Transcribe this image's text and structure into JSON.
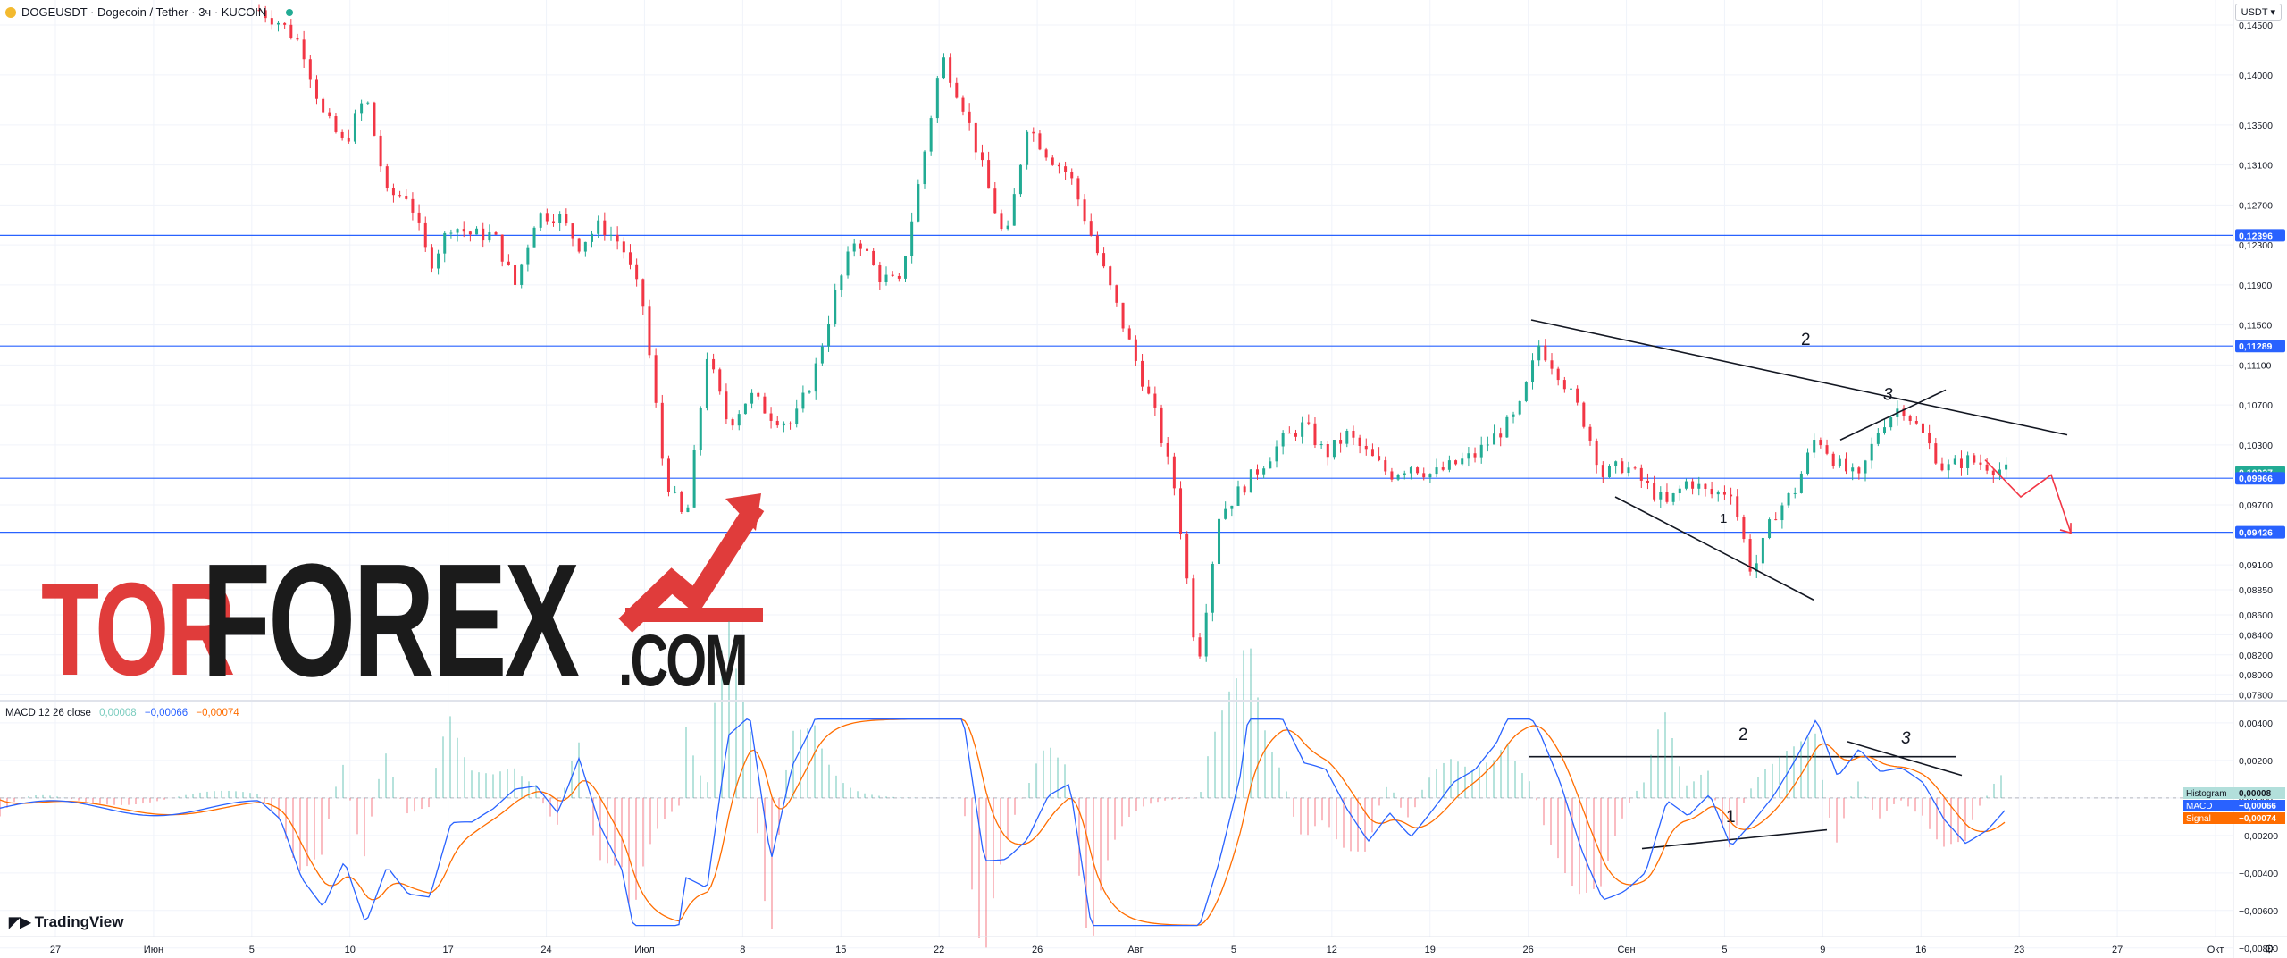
{
  "header": {
    "symbol": "DOGEUSDT · Dogecoin / Tether · 3ч · KUCOIN",
    "currency": "USDT"
  },
  "watermark": {
    "part1": "TOR",
    "part2": "FOREX",
    "part3": ".COM"
  },
  "brand": {
    "name": "TradingView"
  },
  "settings_icon": "gear-icon",
  "colors": {
    "up": "#22ab94",
    "down": "#f23645",
    "level": "#2962ff",
    "macd": "#2962ff",
    "signal": "#ff6d00",
    "arrow": "#f23645"
  },
  "chart_data": [
    {
      "type": "candlestick",
      "symbol": "DOGEUSDT",
      "timeframe": "3ч",
      "y_range": [
        0.0776,
        0.1475
      ],
      "y_ticks": [
        "0,14500",
        "0,14000",
        "0,13500",
        "0,13100",
        "0,12700",
        "0,12300",
        "0,11900",
        "0,11500",
        "0,11100",
        "0,10700",
        "0,10300",
        "0,09700",
        "0,09100",
        "0,08850",
        "0,08600",
        "0,08400",
        "0,08200",
        "0,08000",
        "0,07800"
      ],
      "x_labels": [
        "27",
        "Июн",
        "5",
        "10",
        "17",
        "24",
        "Июл",
        "8",
        "15",
        "22",
        "26",
        "Авг",
        "5",
        "12",
        "19",
        "26",
        "Сен",
        "5",
        "9",
        "16",
        "23",
        "27",
        "Окт"
      ],
      "price_labels": [
        {
          "text": "0,12396",
          "value": 0.12396,
          "kind": "level"
        },
        {
          "text": "0,11289",
          "value": 0.11289,
          "kind": "level"
        },
        {
          "text": "0,10027",
          "value": 0.10027,
          "kind": "last"
        },
        {
          "text": "0,09966",
          "value": 0.09966,
          "kind": "level"
        },
        {
          "text": "0,09426",
          "value": 0.09426,
          "kind": "level"
        }
      ],
      "horizontal_levels": [
        0.12396,
        0.11289,
        0.09966,
        0.09426
      ],
      "annotations": [
        "2",
        "3",
        "1"
      ],
      "close_path": [
        [
          0,
          0.1465
        ],
        [
          2,
          0.1452
        ],
        [
          4,
          0.143
        ],
        [
          6,
          0.136
        ],
        [
          8,
          0.133
        ],
        [
          10,
          0.138
        ],
        [
          12,
          0.128
        ],
        [
          14,
          0.128
        ],
        [
          16,
          0.121
        ],
        [
          18,
          0.125
        ],
        [
          20,
          0.124
        ],
        [
          22,
          0.124
        ],
        [
          24,
          0.119
        ],
        [
          26,
          0.126
        ],
        [
          28,
          0.126
        ],
        [
          30,
          0.123
        ],
        [
          32,
          0.125
        ],
        [
          34,
          0.123
        ],
        [
          36,
          0.117
        ],
        [
          38,
          0.1
        ],
        [
          40,
          0.095
        ],
        [
          42,
          0.112
        ],
        [
          44,
          0.105
        ],
        [
          46,
          0.108
        ],
        [
          48,
          0.106
        ],
        [
          50,
          0.105
        ],
        [
          52,
          0.11
        ],
        [
          54,
          0.118
        ],
        [
          56,
          0.124
        ],
        [
          58,
          0.12
        ],
        [
          60,
          0.119
        ],
        [
          62,
          0.13
        ],
        [
          64,
          0.142
        ],
        [
          66,
          0.137
        ],
        [
          68,
          0.13
        ],
        [
          70,
          0.123
        ],
        [
          72,
          0.135
        ],
        [
          74,
          0.132
        ],
        [
          76,
          0.13
        ],
        [
          78,
          0.124
        ],
        [
          80,
          0.118
        ],
        [
          82,
          0.112
        ],
        [
          84,
          0.106
        ],
        [
          86,
          0.098
        ],
        [
          88,
          0.081
        ],
        [
          90,
          0.096
        ],
        [
          92,
          0.0985
        ],
        [
          94,
          0.101
        ],
        [
          96,
          0.1035
        ],
        [
          98,
          0.105
        ],
        [
          100,
          0.102
        ],
        [
          102,
          0.104
        ],
        [
          104,
          0.102
        ],
        [
          106,
          0.1
        ],
        [
          108,
          0.101
        ],
        [
          110,
          0.1
        ],
        [
          112,
          0.101
        ],
        [
          114,
          0.102
        ],
        [
          116,
          0.104
        ],
        [
          118,
          0.106
        ],
        [
          120,
          0.113
        ],
        [
          122,
          0.11
        ],
        [
          124,
          0.106
        ],
        [
          126,
          0.1
        ],
        [
          128,
          0.101
        ],
        [
          130,
          0.099
        ],
        [
          132,
          0.097
        ],
        [
          134,
          0.0995
        ],
        [
          136,
          0.098
        ],
        [
          138,
          0.0985
        ],
        [
          140,
          0.09
        ],
        [
          142,
          0.096
        ],
        [
          144,
          0.0985
        ],
        [
          146,
          0.104
        ],
        [
          148,
          0.101
        ],
        [
          150,
          0.0995
        ],
        [
          152,
          0.105
        ],
        [
          154,
          0.107
        ],
        [
          156,
          0.104
        ],
        [
          158,
          0.1005
        ],
        [
          160,
          0.1015
        ],
        [
          162,
          0.101
        ],
        [
          164,
          0.10027
        ]
      ]
    },
    {
      "type": "macd",
      "title": "MACD 12 26 close",
      "values": {
        "histogram": "0,00008",
        "macd": "−0,00066",
        "signal": "−0,00074"
      },
      "y_range": [
        -0.0072,
        0.0049
      ],
      "y_ticks": [
        "0,00400",
        "0,00200",
        "0,00000",
        "−0,00200",
        "−0,00400",
        "−0,00600",
        "−0,00800"
      ],
      "legend": [
        {
          "text": "Histogram",
          "value": "0,00008"
        },
        {
          "text": "MACD",
          "value": "−0,00066"
        },
        {
          "text": "Signal",
          "value": "−0,00074"
        }
      ],
      "annotations": [
        "2",
        "3",
        "1"
      ]
    }
  ]
}
